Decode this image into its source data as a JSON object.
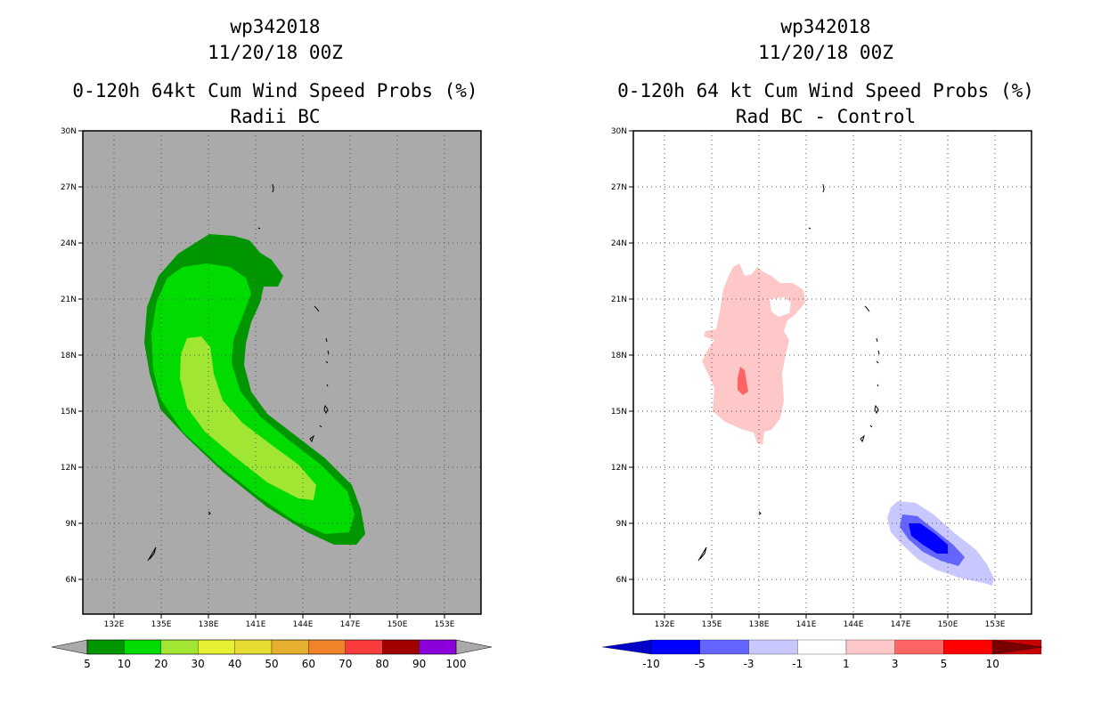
{
  "left_panel": {
    "title_line1": "wp342018",
    "title_line2": "11/20/18 00Z",
    "title_line3": "0-120h 64kt Cum Wind Speed Probs (%)",
    "title_line4": "Radii BC",
    "lat_labels": [
      "30N",
      "27N",
      "24N",
      "21N",
      "18N",
      "15N",
      "12N",
      "9N",
      "6N"
    ],
    "lon_labels": [
      "132E",
      "135E",
      "138E",
      "141E",
      "144E",
      "147E",
      "150E",
      "153E"
    ],
    "colorbar_labels": [
      "5",
      "10",
      "20",
      "30",
      "40",
      "50",
      "60",
      "70",
      "80",
      "90",
      "100"
    ],
    "colorbar_colors": [
      "#009600",
      "#00dc00",
      "#a0e632",
      "#e6f032",
      "#e6dc32",
      "#e6af2d",
      "#f08228",
      "#fa3c3c",
      "#a00000",
      "#8c00dc"
    ],
    "background_color": "#aaaaaa"
  },
  "right_panel": {
    "title_line1": "wp342018",
    "title_line2": "11/20/18 00Z",
    "title_line3": "0-120h 64 kt Cum Wind Speed Probs (%)",
    "title_line4": "Rad BC - Control",
    "lat_labels": [
      "30N",
      "27N",
      "24N",
      "21N",
      "18N",
      "15N",
      "12N",
      "9N",
      "6N"
    ],
    "lon_labels": [
      "132E",
      "135E",
      "138E",
      "141E",
      "144E",
      "147E",
      "150E",
      "153E"
    ],
    "colorbar_labels": [
      "-10",
      "-5",
      "-3",
      "-1",
      "1",
      "3",
      "5",
      "10"
    ],
    "colorbar_colors": [
      "#0000c8",
      "#0000ff",
      "#6464ff",
      "#c8c8ff",
      "#ffffff",
      "#ffc8c8",
      "#ff6464",
      "#ff0000",
      "#c80000",
      "#780000"
    ]
  }
}
